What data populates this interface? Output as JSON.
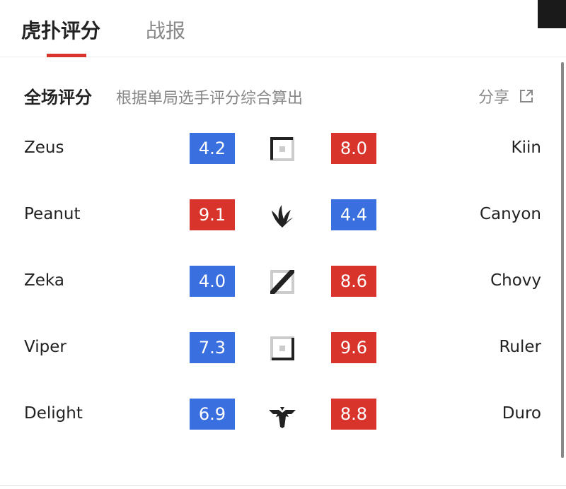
{
  "tabs": [
    {
      "label": "虎扑评分",
      "active": true
    },
    {
      "label": "战报",
      "active": false
    }
  ],
  "section": {
    "title": "全场评分",
    "subtitle": "根据单局选手评分综合算出",
    "share_label": "分享"
  },
  "colors": {
    "high": "#d9342b",
    "low": "#3a6fe0",
    "accent": "#d9342b"
  },
  "rows": [
    {
      "role": "top-lane-icon",
      "left": {
        "name": "Zeus",
        "score": "4.2",
        "color": "#3a6fe0"
      },
      "right": {
        "name": "Kiin",
        "score": "8.0",
        "color": "#d9342b"
      }
    },
    {
      "role": "jungle-icon",
      "left": {
        "name": "Peanut",
        "score": "9.1",
        "color": "#d9342b"
      },
      "right": {
        "name": "Canyon",
        "score": "4.4",
        "color": "#3a6fe0"
      }
    },
    {
      "role": "mid-lane-icon",
      "left": {
        "name": "Zeka",
        "score": "4.0",
        "color": "#3a6fe0"
      },
      "right": {
        "name": "Chovy",
        "score": "8.6",
        "color": "#d9342b"
      }
    },
    {
      "role": "bot-lane-icon",
      "left": {
        "name": "Viper",
        "score": "7.3",
        "color": "#3a6fe0"
      },
      "right": {
        "name": "Ruler",
        "score": "9.6",
        "color": "#d9342b"
      }
    },
    {
      "role": "support-icon",
      "left": {
        "name": "Delight",
        "score": "6.9",
        "color": "#3a6fe0"
      },
      "right": {
        "name": "Duro",
        "score": "8.8",
        "color": "#d9342b"
      }
    }
  ]
}
